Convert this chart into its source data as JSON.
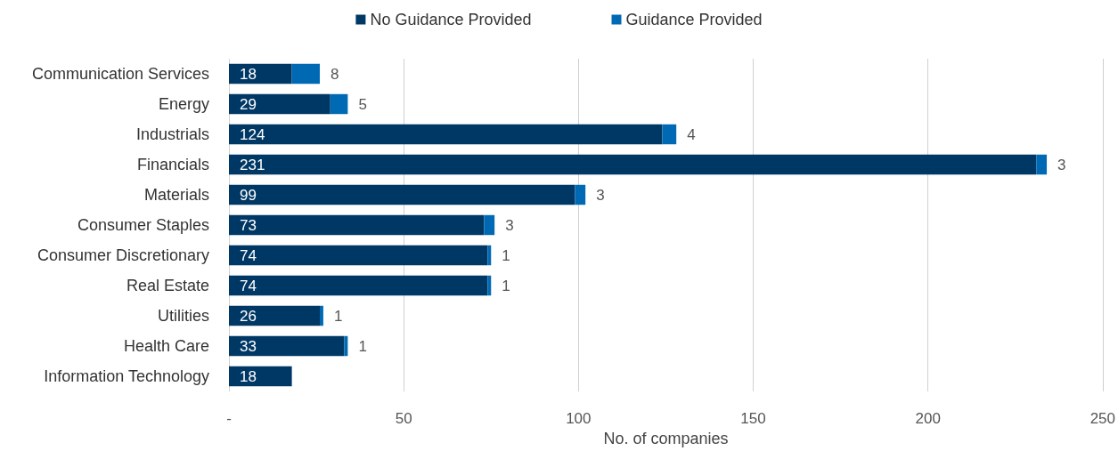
{
  "chart_data": {
    "type": "bar",
    "orientation": "horizontal",
    "stacked": true,
    "xlabel": "No. of companies",
    "categories": [
      "Communication Services",
      "Energy",
      "Industrials",
      "Financials",
      "Materials",
      "Consumer Staples",
      "Consumer Discretionary",
      "Real Estate",
      "Utilities",
      "Health Care",
      "Information Technology"
    ],
    "series": [
      {
        "name": "No Guidance Provided",
        "color": "#003865",
        "values": [
          18,
          29,
          124,
          231,
          99,
          73,
          74,
          74,
          26,
          33,
          18
        ]
      },
      {
        "name": "Guidance Provided",
        "color": "#0069b4",
        "values": [
          8,
          5,
          4,
          3,
          3,
          3,
          1,
          1,
          1,
          1,
          null
        ]
      }
    ],
    "xlim": [
      0,
      250
    ],
    "xticks": [
      {
        "value": 0,
        "label": "-"
      },
      50,
      100,
      150,
      200,
      250
    ],
    "grid": "x",
    "legend": "top",
    "data_labels": true
  }
}
